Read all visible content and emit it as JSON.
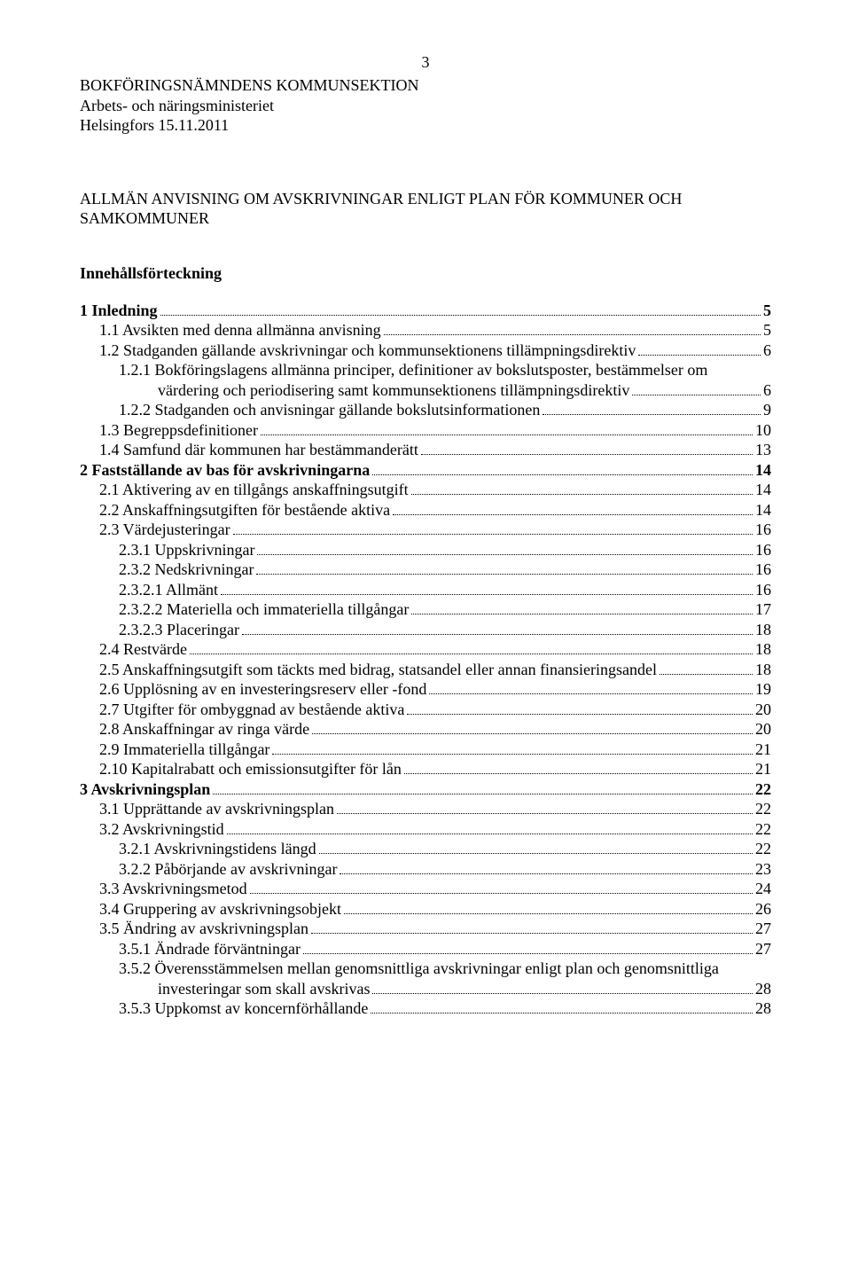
{
  "page_number": "3",
  "header": {
    "line1": "BOKFÖRINGSNÄMNDENS KOMMUNSEKTION",
    "line2": "Arbets- och näringsministeriet",
    "line3": "Helsingfors 15.11.2011"
  },
  "title": {
    "line1": "ALLMÄN ANVISNING OM AVSKRIVNINGAR ENLIGT PLAN FÖR KOMMUNER OCH",
    "line2": "SAMKOMMUNER"
  },
  "toc_title": "Innehållsförteckning",
  "toc": [
    {
      "label": "1 Inledning",
      "page": "5",
      "indent": 0,
      "bold": true
    },
    {
      "label": "1.1 Avsikten med denna allmänna anvisning",
      "page": "5",
      "indent": 1
    },
    {
      "label": "1.2 Stadganden gällande avskrivningar och kommunsektionens tillämpningsdirektiv",
      "page": "6",
      "indent": 1
    },
    {
      "label": "1.2.1 Bokföringslagens allmänna principer, definitioner av bokslutsposter, bestämmelser om",
      "label_cont": "värdering och periodisering samt kommunsektionens tillämpningsdirektiv",
      "page": "6",
      "indent": 2
    },
    {
      "label": "1.2.2 Stadganden och anvisningar gällande bokslutsinformationen",
      "page": "9",
      "indent": 2
    },
    {
      "label": "1.3 Begreppsdefinitioner",
      "page": "10",
      "indent": 1
    },
    {
      "label": "1.4 Samfund där kommunen har bestämmanderätt",
      "page": "13",
      "indent": 1
    },
    {
      "label": "2  Fastställande av bas för avskrivningarna",
      "page": "14",
      "indent": 0,
      "bold": true
    },
    {
      "label": "2.1 Aktivering av en tillgångs anskaffningsutgift",
      "page": "14",
      "indent": 1
    },
    {
      "label": "2.2 Anskaffningsutgiften för bestående aktiva",
      "page": "14",
      "indent": 1
    },
    {
      "label": "2.3 Värdejusteringar",
      "page": "16",
      "indent": 1
    },
    {
      "label": "2.3.1 Uppskrivningar",
      "page": "16",
      "indent": 2
    },
    {
      "label": "2.3.2 Nedskrivningar",
      "page": "16",
      "indent": 2
    },
    {
      "label": "2.3.2.1 Allmänt",
      "page": "16",
      "indent": 2
    },
    {
      "label": "2.3.2.2 Materiella och immateriella tillgångar",
      "page": "17",
      "indent": 2
    },
    {
      "label": "2.3.2.3 Placeringar",
      "page": "18",
      "indent": 2
    },
    {
      "label": "2.4 Restvärde",
      "page": "18",
      "indent": 1
    },
    {
      "label": "2.5 Anskaffningsutgift som täckts med bidrag, statsandel eller annan finansieringsandel",
      "page": "18",
      "indent": 1
    },
    {
      "label": "2.6 Upplösning av en investeringsreserv eller -fond",
      "page": "19",
      "indent": 1
    },
    {
      "label": "2.7 Utgifter för ombyggnad av bestående aktiva",
      "page": "20",
      "indent": 1
    },
    {
      "label": "2.8 Anskaffningar av ringa värde",
      "page": "20",
      "indent": 1
    },
    {
      "label": "2.9 Immateriella tillgångar",
      "page": "21",
      "indent": 1
    },
    {
      "label": "2.10 Kapitalrabatt och emissionsutgifter för lån",
      "page": "21",
      "indent": 1
    },
    {
      "label": "3 Avskrivningsplan",
      "page": "22",
      "indent": 0,
      "bold": true
    },
    {
      "label": "3.1 Upprättande av avskrivningsplan",
      "page": "22",
      "indent": 1
    },
    {
      "label": "3.2 Avskrivningstid",
      "page": "22",
      "indent": 1
    },
    {
      "label": "3.2.1 Avskrivningstidens längd",
      "page": "22",
      "indent": 2
    },
    {
      "label": "3.2.2 Påbörjande av avskrivningar",
      "page": "23",
      "indent": 2
    },
    {
      "label": "3.3 Avskrivningsmetod",
      "page": "24",
      "indent": 1
    },
    {
      "label": "3.4 Gruppering av avskrivningsobjekt",
      "page": "26",
      "indent": 1
    },
    {
      "label": "3.5 Ändring av avskrivningsplan",
      "page": "27",
      "indent": 1
    },
    {
      "label": "3.5.1 Ändrade förväntningar",
      "page": "27",
      "indent": 2
    },
    {
      "label": "3.5.2 Överensstämmelsen mellan genomsnittliga avskrivningar enligt plan och genomsnittliga",
      "label_cont": "investeringar som skall avskrivas",
      "page": "28",
      "indent": 2
    },
    {
      "label": "3.5.3 Uppkomst av koncernförhållande",
      "page": "28",
      "indent": 2
    }
  ]
}
